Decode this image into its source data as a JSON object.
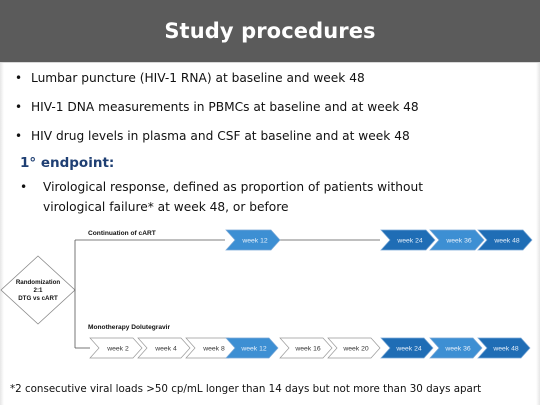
{
  "title": "Study procedures",
  "bullets": [
    "Lumbar puncture (HIV-1 RNA) at baseline and week 48",
    "HIV-1 DNA measurements in PBMCs at baseline and at week 48",
    "HIV drug levels in plasma and CSF at baseline and at week 48"
  ],
  "endpoint": {
    "heading": "1° endpoint:",
    "bullet": "Virological response, defined as proportion of patients without virological failure* at week 48, or before"
  },
  "diagram": {
    "randomization_lines": [
      "Randomization",
      "2:1",
      "DTG vs cART"
    ],
    "top_arm_label": "Continuation of cART",
    "bottom_arm_label": "Monotherapy Dolutegravir",
    "top_weeks": [
      "week 12",
      "week 24",
      "week 36",
      "week 48"
    ],
    "bottom_weeks": [
      "week 2",
      "week 4",
      "week 8",
      "week 12",
      "week 16",
      "week 20",
      "week 24",
      "week 36",
      "week 48"
    ],
    "colors": {
      "arrow_white": "#ffffff",
      "arrow_light": "#cfe6f6",
      "arrow_mid": "#3d8fd3",
      "arrow_dark": "#1f6db5",
      "line": "#555555"
    }
  },
  "footnote": "*2 consecutive viral loads >50 cp/mL longer than 14 days but not more than 30 days apart"
}
